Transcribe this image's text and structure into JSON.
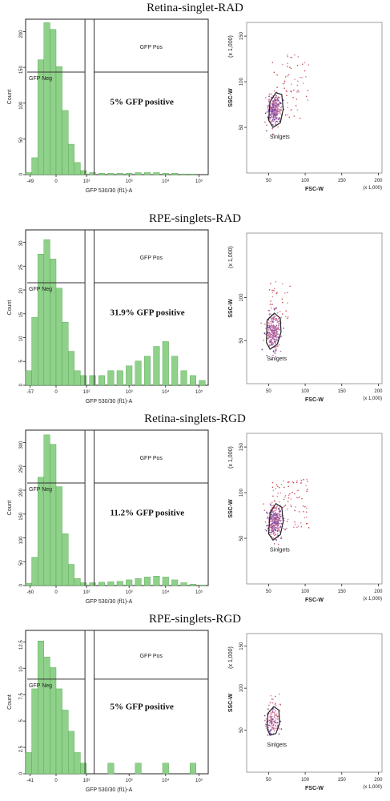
{
  "colors": {
    "histogram": "#8fd18a",
    "histogram_edge": "#4aa347",
    "event_pink": "#d47a9e",
    "event_purple": "#7a4ea8",
    "event_red": "#d04a4a"
  },
  "chart_data": [
    {
      "type": "bar",
      "title": "Retina-singlet-RAD",
      "xlabel": "GFP  530/30 (fl1)-A",
      "ylabel": "Count",
      "xticks": [
        "-49",
        "0",
        "10²",
        "10³",
        "10⁴",
        "10⁵"
      ],
      "yticks": [
        "0",
        "50",
        "100",
        "150",
        "200"
      ],
      "ylim": [
        0,
        230
      ],
      "gates": [
        {
          "label": "GFP Neg"
        },
        {
          "label": "GFP Pos"
        }
      ],
      "annotation": "5% GFP positive",
      "x": [
        -0.6,
        -0.4,
        -0.2,
        0,
        0.2,
        0.4,
        0.6,
        0.8,
        1.0,
        1.2,
        1.5,
        1.8,
        2.1,
        2.4,
        2.7,
        3.0,
        3.3,
        3.6,
        3.9,
        4.2,
        4.5,
        4.8,
        5.1
      ],
      "values": [
        3,
        25,
        170,
        225,
        215,
        160,
        95,
        45,
        18,
        6,
        3,
        2,
        2,
        2,
        2,
        3,
        3,
        3,
        2,
        2,
        1,
        1,
        0
      ]
    },
    {
      "type": "scatter",
      "xlabel": "FSC-W",
      "ylabel": "SSC-W",
      "xticks": [
        "50",
        "100",
        "150",
        "200"
      ],
      "yticks": [
        "50",
        "100",
        "150"
      ],
      "xunit": "(x 1,000)",
      "yunit": "(x 1,000)",
      "gate": "Sinlgets",
      "xlim": [
        20,
        205
      ],
      "ylim": [
        0,
        165
      ],
      "cluster": {
        "cx": 58,
        "cy": 70,
        "sx": 5,
        "sy": 9,
        "n": 240
      },
      "outliers": {
        "xmin": 55,
        "xmax": 105,
        "ymin": 60,
        "ymax": 130,
        "n": 70
      },
      "gate_polygon": [
        [
          50,
          58
        ],
        [
          52,
          78
        ],
        [
          60,
          88
        ],
        [
          68,
          86
        ],
        [
          70,
          70
        ],
        [
          66,
          55
        ],
        [
          56,
          50
        ]
      ]
    },
    {
      "type": "bar",
      "title": "RPE-singlets-RAD",
      "xlabel": "GFP  530/30 (fl1)-A",
      "ylabel": "Count",
      "xticks": [
        "-57",
        "0",
        "10²",
        "10³",
        "10⁴",
        "10⁵"
      ],
      "yticks": [
        "0",
        "5",
        "10",
        "15",
        "20",
        "25",
        "30"
      ],
      "ylim": [
        0,
        32
      ],
      "gates": [
        {
          "label": "GFP Neg"
        },
        {
          "label": "GFP Pos"
        }
      ],
      "annotation": "31.9% GFP positive",
      "x": [
        -0.6,
        -0.4,
        -0.2,
        0,
        0.2,
        0.4,
        0.6,
        0.8,
        1.0,
        1.2,
        1.5,
        1.8,
        2.1,
        2.4,
        2.7,
        3.0,
        3.3,
        3.6,
        3.9,
        4.2,
        4.5,
        4.8,
        5.1
      ],
      "values": [
        3,
        14,
        27,
        30,
        26,
        20,
        13,
        7,
        3,
        2,
        2,
        2,
        3,
        3,
        4,
        5,
        6,
        8,
        9,
        6,
        3,
        2,
        1
      ]
    },
    {
      "type": "scatter",
      "xlabel": "FSC-W",
      "ylabel": "SSC-W",
      "xticks": [
        "50",
        "100",
        "150",
        "200"
      ],
      "yticks": [
        "50",
        "100"
      ],
      "xunit": "(x 1,000)",
      "yunit": "(x 1,000)",
      "gate": "Sinlgets",
      "xlim": [
        20,
        205
      ],
      "ylim": [
        0,
        175
      ],
      "cluster": {
        "cx": 55,
        "cy": 60,
        "sx": 5,
        "sy": 12,
        "n": 220
      },
      "outliers": {
        "xmin": 50,
        "xmax": 80,
        "ymin": 70,
        "ymax": 120,
        "n": 35
      },
      "gate_polygon": [
        [
          47,
          48
        ],
        [
          48,
          74
        ],
        [
          58,
          82
        ],
        [
          66,
          76
        ],
        [
          67,
          60
        ],
        [
          62,
          46
        ],
        [
          52,
          40
        ]
      ]
    },
    {
      "type": "bar",
      "title": "Retina-singlets-RGD",
      "xlabel": "GFP  530/30 (fl1)-A",
      "ylabel": "Count",
      "xticks": [
        "-60",
        "0",
        "10²",
        "10³",
        "10⁴",
        "10⁵"
      ],
      "yticks": [
        "0",
        "50",
        "100",
        "150",
        "200",
        "250",
        "300"
      ],
      "ylim": [
        0,
        330
      ],
      "gates": [
        {
          "label": "GFP Neg"
        },
        {
          "label": "GFP Pos"
        }
      ],
      "annotation": "11.2% GFP positive",
      "x": [
        -0.6,
        -0.4,
        -0.2,
        0,
        0.2,
        0.4,
        0.6,
        0.8,
        1.0,
        1.2,
        1.5,
        1.8,
        2.1,
        2.4,
        2.7,
        3.0,
        3.3,
        3.6,
        3.9,
        4.2,
        4.5,
        4.8,
        5.1
      ],
      "values": [
        5,
        60,
        230,
        320,
        300,
        210,
        110,
        45,
        15,
        6,
        6,
        7,
        8,
        9,
        12,
        15,
        18,
        20,
        18,
        12,
        6,
        3,
        1
      ]
    },
    {
      "type": "scatter",
      "xlabel": "FSC-W",
      "ylabel": "SSC-W",
      "xticks": [
        "50",
        "100",
        "150",
        "200"
      ],
      "yticks": [
        "50",
        "100",
        "150"
      ],
      "xunit": "(x 1,000)",
      "yunit": "(x 1,000)",
      "gate": "Sinlgets",
      "xlim": [
        20,
        205
      ],
      "ylim": [
        0,
        165
      ],
      "cluster": {
        "cx": 58,
        "cy": 68,
        "sx": 5,
        "sy": 9,
        "n": 260
      },
      "outliers": {
        "xmin": 55,
        "xmax": 105,
        "ymin": 60,
        "ymax": 115,
        "n": 90
      },
      "gate_polygon": [
        [
          50,
          55
        ],
        [
          52,
          78
        ],
        [
          60,
          88
        ],
        [
          68,
          84
        ],
        [
          70,
          68
        ],
        [
          66,
          54
        ],
        [
          56,
          48
        ]
      ]
    },
    {
      "type": "bar",
      "title": "RPE-singlets-RGD",
      "xlabel": "GFP  530/30 (fl1)-A",
      "ylabel": "Count",
      "xticks": [
        "-41",
        "0",
        "10²",
        "10³",
        "10⁴",
        "10⁵"
      ],
      "yticks": [
        "0",
        "2.5",
        "5",
        "7.5",
        "10",
        "12.5"
      ],
      "ylim": [
        0,
        13.5
      ],
      "gates": [
        {
          "label": "GFP Neg"
        },
        {
          "label": "GFP Pos"
        }
      ],
      "annotation": "5% GFP positive",
      "x": [
        -0.6,
        -0.4,
        -0.2,
        0,
        0.2,
        0.4,
        0.6,
        0.8,
        1.0,
        1.2,
        1.5,
        1.8,
        2.1,
        2.4,
        2.7,
        3.0,
        3.3,
        3.6,
        3.9,
        4.2,
        4.5,
        4.8,
        5.1
      ],
      "values": [
        2,
        8,
        12.5,
        11,
        10,
        8,
        6,
        4,
        2,
        1,
        0,
        0,
        1,
        0,
        0,
        1,
        0,
        0,
        1,
        0,
        0,
        1,
        0
      ]
    },
    {
      "type": "scatter",
      "xlabel": "FSC-W",
      "ylabel": "SSC-W",
      "xticks": [
        "50",
        "100",
        "150",
        "200"
      ],
      "yticks": [
        "50",
        "100",
        "150"
      ],
      "xunit": "(x 1,000)",
      "yunit": "(x 1,000)",
      "gate": "Sinlgets",
      "xlim": [
        20,
        205
      ],
      "ylim": [
        0,
        165
      ],
      "cluster": {
        "cx": 55,
        "cy": 60,
        "sx": 5,
        "sy": 8,
        "n": 110
      },
      "outliers": {
        "xmin": 52,
        "xmax": 70,
        "ymin": 65,
        "ymax": 95,
        "n": 15
      },
      "gate_polygon": [
        [
          48,
          52
        ],
        [
          49,
          70
        ],
        [
          57,
          78
        ],
        [
          64,
          74
        ],
        [
          65,
          58
        ],
        [
          60,
          46
        ],
        [
          52,
          44
        ]
      ]
    }
  ]
}
